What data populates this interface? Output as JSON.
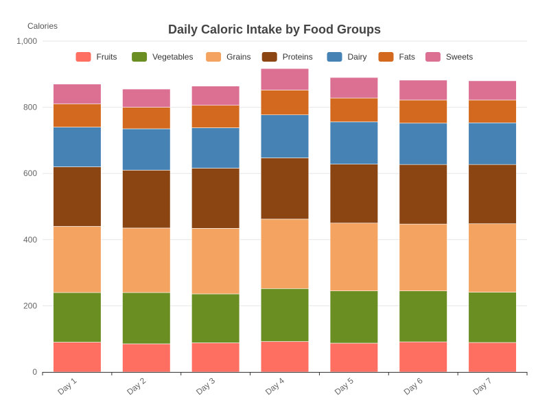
{
  "chart_data": {
    "type": "bar",
    "stacked": true,
    "title": "Daily Caloric Intake by Food Groups",
    "xlabel": "",
    "ylabel": "Calories",
    "ylim": [
      0,
      1000
    ],
    "yticks": [
      0,
      200,
      400,
      600,
      800,
      1000
    ],
    "ytick_labels": [
      "0",
      "200",
      "400",
      "600",
      "800",
      "1,000"
    ],
    "grid": true,
    "legend_position": "top",
    "categories": [
      "Day 1",
      "Day 2",
      "Day 3",
      "Day 4",
      "Day 5",
      "Day 6",
      "Day 7"
    ],
    "series": [
      {
        "name": "Fruits",
        "color": "#ff6f61",
        "values": [
          90,
          85,
          88,
          92,
          87,
          91,
          89
        ]
      },
      {
        "name": "Vegetables",
        "color": "#6b8e23",
        "values": [
          150,
          155,
          148,
          160,
          158,
          154,
          152
        ]
      },
      {
        "name": "Grains",
        "color": "#f4a460",
        "values": [
          200,
          195,
          198,
          210,
          205,
          202,
          207
        ]
      },
      {
        "name": "Proteins",
        "color": "#8b4513",
        "values": [
          180,
          175,
          182,
          185,
          178,
          180,
          179
        ]
      },
      {
        "name": "Dairy",
        "color": "#4682b4",
        "values": [
          120,
          125,
          122,
          130,
          128,
          125,
          126
        ]
      },
      {
        "name": "Fats",
        "color": "#d2691e",
        "values": [
          70,
          65,
          68,
          75,
          72,
          70,
          69
        ]
      },
      {
        "name": "Sweets",
        "color": "#db7093",
        "values": [
          60,
          55,
          58,
          65,
          62,
          60,
          58
        ]
      }
    ]
  }
}
